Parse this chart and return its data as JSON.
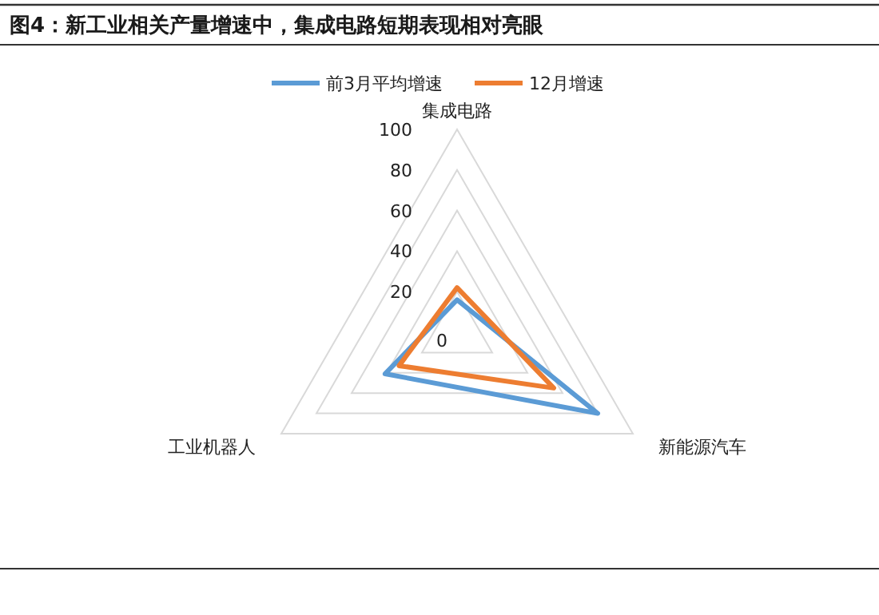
{
  "chart_data": {
    "type": "radar",
    "title": "图4：新工业相关产量增速中，集成电路短期表现相对亮眼",
    "categories": [
      "集成电路",
      "新能源汽车",
      "工业机器人"
    ],
    "series": [
      {
        "name": "前3月平均增速",
        "color": "#5b9bd5",
        "values": [
          16,
          80,
          41
        ]
      },
      {
        "name": "12月增速",
        "color": "#ed7d31",
        "values": [
          22,
          55,
          33
        ]
      }
    ],
    "ylim": [
      0,
      100
    ],
    "yticks": [
      0,
      20,
      40,
      60,
      80,
      100
    ],
    "grid": true,
    "legend": "top"
  }
}
